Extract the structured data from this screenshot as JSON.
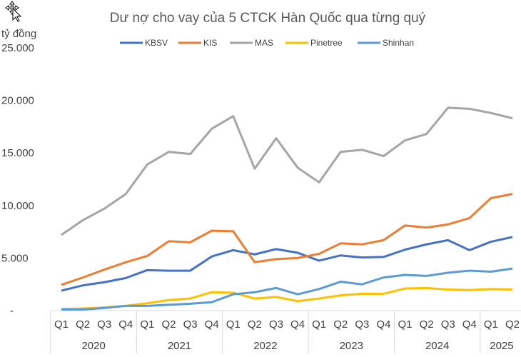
{
  "chart_data": {
    "type": "line",
    "title": "Dư nợ cho vay của 5 CTCK Hàn Quốc qua từng quý",
    "ylabel": "tỷ đồng",
    "ylim": [
      0,
      25000
    ],
    "y_ticks": [
      "-",
      "5.000",
      "10.000",
      "15.000",
      "20.000",
      "25.000"
    ],
    "grid": false,
    "legend_position": "top",
    "categories": [
      "Q1",
      "Q2",
      "Q3",
      "Q4",
      "Q1",
      "Q2",
      "Q3",
      "Q4",
      "Q1",
      "Q2",
      "Q3",
      "Q4",
      "Q1",
      "Q2",
      "Q3",
      "Q4",
      "Q1",
      "Q2",
      "Q3",
      "Q4",
      "Q1",
      "Q2"
    ],
    "years": [
      {
        "label": "2020",
        "quarters": 4
      },
      {
        "label": "2021",
        "quarters": 4
      },
      {
        "label": "2022",
        "quarters": 4
      },
      {
        "label": "2023",
        "quarters": 4
      },
      {
        "label": "2024",
        "quarters": 4
      },
      {
        "label": "2025",
        "quarters": 2
      }
    ],
    "series": [
      {
        "name": "KBSV",
        "color": "#4472C4",
        "values": [
          1900,
          2400,
          2700,
          3100,
          3850,
          3800,
          3800,
          5150,
          5750,
          5350,
          5850,
          5500,
          4750,
          5250,
          5050,
          5100,
          5800,
          6300,
          6700,
          5750,
          6550,
          7000
        ]
      },
      {
        "name": "KIS",
        "color": "#ED7D31",
        "values": [
          2450,
          3150,
          3900,
          4600,
          5200,
          6600,
          6500,
          7600,
          7550,
          4600,
          4900,
          5000,
          5400,
          6400,
          6300,
          6700,
          8100,
          7900,
          8200,
          8800,
          10700,
          11100
        ]
      },
      {
        "name": "MAS",
        "color": "#A5A5A5",
        "values": [
          7200,
          8600,
          9700,
          11100,
          13900,
          15100,
          14900,
          17300,
          18500,
          13500,
          16400,
          13600,
          12200,
          15100,
          15300,
          14700,
          16200,
          16800,
          19300,
          19200,
          18800,
          18300
        ]
      },
      {
        "name": "Pinetree",
        "color": "#FFC000",
        "values": [
          150,
          200,
          300,
          450,
          700,
          1000,
          1150,
          1750,
          1700,
          1150,
          1300,
          900,
          1150,
          1450,
          1600,
          1600,
          2100,
          2150,
          2000,
          1950,
          2050,
          2000
        ]
      },
      {
        "name": "Shinhan",
        "color": "#5B9BD5",
        "values": [
          100,
          100,
          250,
          450,
          450,
          550,
          650,
          800,
          1550,
          1750,
          2150,
          1550,
          2050,
          2750,
          2500,
          3150,
          3400,
          3300,
          3600,
          3800,
          3700,
          4000
        ]
      }
    ]
  },
  "cursor_icon": "move-cursor-icon"
}
